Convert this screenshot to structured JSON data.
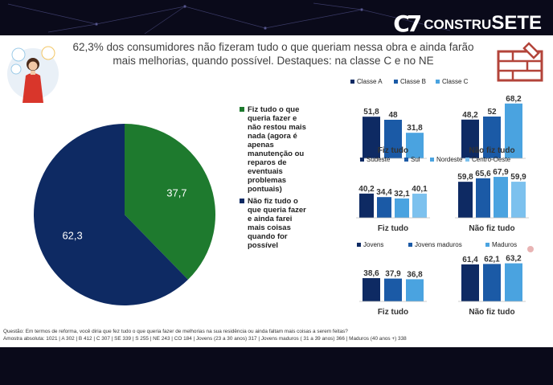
{
  "logo": {
    "mark": "C7",
    "brand_prefix": "CONSTRU",
    "brand_suffix": "SETE"
  },
  "title": "62,3% dos consumidores não fizeram tudo o que queriam nessa obra e ainda farão mais melhorias, quando possível. Destaques: na classe C e no NE",
  "colors": {
    "green": "#1e7a2e",
    "navy": "#0e2a63",
    "blue": "#1b5aa6",
    "light": "#4aa3e0",
    "lighter": "#7cc1ee"
  },
  "pie": {
    "slices": [
      {
        "label": "Fiz tudo o que queria fazer e não restou mais nada (agora é apenas manutenção ou reparos de eventuais problemas pontuais)",
        "value": 37.7,
        "value_text": "37,7",
        "color": "#1e7a2e"
      },
      {
        "label": "Não fiz tudo o que queria fazer e ainda farei mais coisas quando for possível",
        "value": 62.3,
        "value_text": "62,3",
        "color": "#0e2a63"
      }
    ]
  },
  "chart_data": [
    {
      "type": "pie",
      "categories": [
        "Fiz tudo o que queria fazer e não restou mais nada (agora é apenas manutenção ou reparos de eventuais problemas pontuais)",
        "Não fiz tudo o que queria fazer e ainda farei mais coisas quando for possível"
      ],
      "values": [
        37.7,
        62.3
      ]
    },
    {
      "type": "bar",
      "categories": [
        "Fiz tudo",
        "Não fiz tudo"
      ],
      "series": [
        {
          "name": "Classe A",
          "values": [
            51.8,
            48.2
          ],
          "labels": [
            "51,8",
            "48,2"
          ],
          "color": "#0e2a63"
        },
        {
          "name": "Classe B",
          "values": [
            48,
            52
          ],
          "labels": [
            "48",
            "52"
          ],
          "color": "#1b5aa6"
        },
        {
          "name": "Classe C",
          "values": [
            31.8,
            68.2
          ],
          "labels": [
            "31,8",
            "68,2"
          ],
          "color": "#4aa3e0"
        }
      ]
    },
    {
      "type": "bar",
      "categories": [
        "Fiz tudo",
        "Não fiz tudo"
      ],
      "series": [
        {
          "name": "Sudeste",
          "values": [
            40.2,
            59.8
          ],
          "labels": [
            "40,2",
            "59,8"
          ],
          "color": "#0e2a63"
        },
        {
          "name": "Sul",
          "values": [
            34.4,
            65.6
          ],
          "labels": [
            "34,4",
            "65,6"
          ],
          "color": "#1b5aa6"
        },
        {
          "name": "Nordeste",
          "values": [
            32.1,
            67.9
          ],
          "labels": [
            "32,1",
            "67,9"
          ],
          "color": "#4aa3e0"
        },
        {
          "name": "Centro-Oeste",
          "values": [
            40.1,
            59.9
          ],
          "labels": [
            "40,1",
            "59,9"
          ],
          "color": "#7cc1ee"
        }
      ]
    },
    {
      "type": "bar",
      "categories": [
        "Fiz tudo",
        "Não fiz tudo"
      ],
      "series": [
        {
          "name": "Jovens",
          "values": [
            38.6,
            61.4
          ],
          "labels": [
            "38,6",
            "61,4"
          ],
          "color": "#0e2a63"
        },
        {
          "name": "Jovens maduros",
          "values": [
            37.9,
            62.1
          ],
          "labels": [
            "37,9",
            "62,1"
          ],
          "color": "#1b5aa6"
        },
        {
          "name": "Maduros",
          "values": [
            36.8,
            63.2
          ],
          "labels": [
            "36,8",
            "63,2"
          ],
          "color": "#4aa3e0"
        }
      ]
    }
  ],
  "footer": {
    "line1": "Questão: Em termos de reforma, você diria que fez tudo o que queria fazer de melhorias na sua residência ou ainda faltam mais coisas a serem feitas?",
    "line2": "Amostra absoluta: 1021 | A 302 | B 412 | C 307 | SE 339 | S 255 | NE 243 | CO 184 | Jovens (23 a 30 anos)  317 | Jovens maduros ( 31 a 39 anos) 366 | Maduros (40 anos +) 338"
  }
}
